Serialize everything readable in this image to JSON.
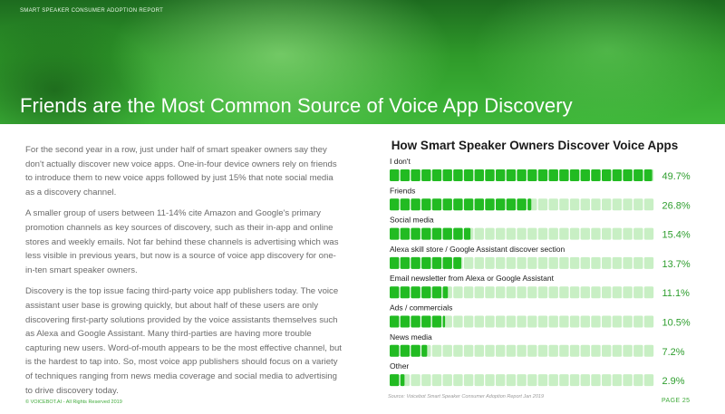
{
  "header": {
    "report_tag": "SMART SPEAKER CONSUMER ADOPTION REPORT",
    "title": "Friends are the Most Common Source of Voice App Discovery"
  },
  "body": {
    "paragraphs": [
      "For the second year in a row, just under half of smart speaker owners say they don't actually discover new voice apps. One-in-four device owners rely on friends to introduce them to new voice apps followed by just 15% that note social media as a discovery channel.",
      "A smaller group of users between 11-14% cite Amazon and Google's primary promotion channels as key sources of discovery, such as their in-app and online stores and weekly emails. Not far behind these channels is advertising which was less visible in previous years, but now is a source of voice app discovery for one-in-ten smart speaker owners.",
      "Discovery is the top issue facing third-party voice app publishers today. The voice assistant user base is growing quickly, but about half of these users are only discovering first-party solutions provided by the voice assistants themselves such as Alexa and Google Assistant. Many third-parties are having more trouble capturing new users. Word-of-mouth appears to be the most effective channel, but is the hardest to tap into. So, most voice app publishers should focus on a variety of techniques ranging from news media coverage and social media to advertising to drive discovery today."
    ]
  },
  "chart_data": {
    "type": "bar",
    "orientation": "horizontal",
    "title": "How Smart Speaker Owners Discover Voice Apps",
    "categories": [
      "I don't",
      "Friends",
      "Social media",
      "Alexa skill store / Google Assistant discover section",
      "Email newsletter from Alexa or Google Assistant",
      "Ads / commercials",
      "News media",
      "Other"
    ],
    "values": [
      49.7,
      26.8,
      15.4,
      13.7,
      11.1,
      10.5,
      7.2,
      2.9
    ],
    "value_labels": [
      "49.7%",
      "26.8%",
      "15.4%",
      "13.7%",
      "11.1%",
      "10.5%",
      "7.2%",
      "2.9%"
    ],
    "units_per_block": 2,
    "blocks_per_bar": 25,
    "colors": {
      "filled": "#22bb22",
      "empty": "#c8efc4",
      "value_text": "#2e9e2e"
    }
  },
  "footer": {
    "source": "Source: Voicebot Smart Speaker Consumer Adoption Report Jan 2019",
    "copyright": "© VOICEBOT.AI - All Rights Reserved 2019",
    "page": "PAGE 25"
  }
}
